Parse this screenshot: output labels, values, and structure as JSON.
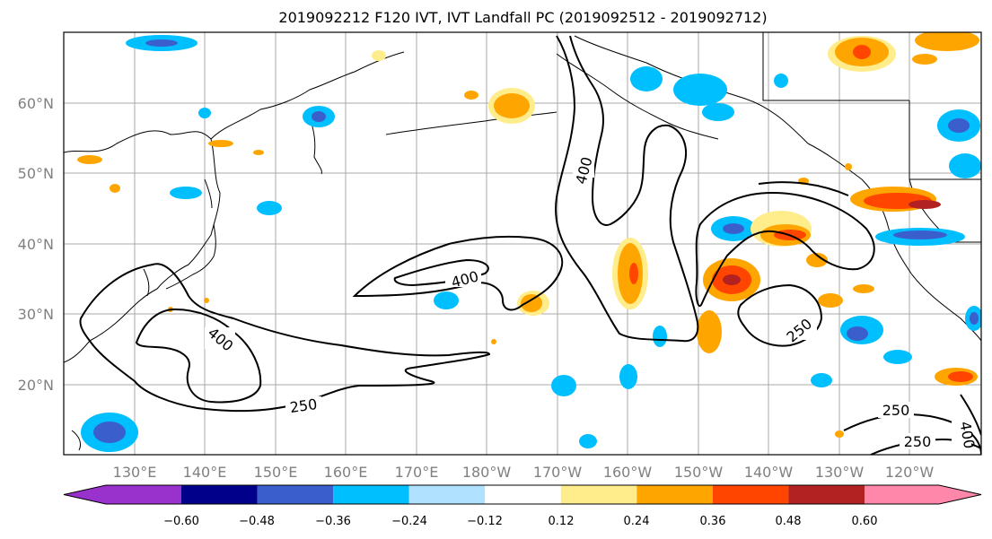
{
  "title": "2019092212 F120 IVT, IVT Landfall PC (2019092512 - 2019092712)",
  "map": {
    "lat_labels": [
      "60°N",
      "50°N",
      "40°N",
      "30°N",
      "20°N"
    ],
    "lon_labels": [
      "130°E",
      "140°E",
      "150°E",
      "160°E",
      "170°E",
      "180°W",
      "170°W",
      "160°W",
      "150°W",
      "140°W",
      "130°W",
      "120°W"
    ],
    "contour_labels": [
      "400",
      "400",
      "400",
      "250",
      "250",
      "250",
      "250",
      "400"
    ]
  },
  "colorbar": {
    "ticks": [
      "−0.60",
      "−0.48",
      "−0.36",
      "−0.24",
      "−0.12",
      "0.12",
      "0.24",
      "0.36",
      "0.48",
      "0.60"
    ],
    "colors": [
      "#9932CC",
      "#00008B",
      "#3A5FCD",
      "#00BFFF",
      "#B0E2FF",
      "#FFFFFF",
      "#FFEC8B",
      "#FFA500",
      "#FF4500",
      "#B22222",
      "#FF88AA"
    ]
  }
}
